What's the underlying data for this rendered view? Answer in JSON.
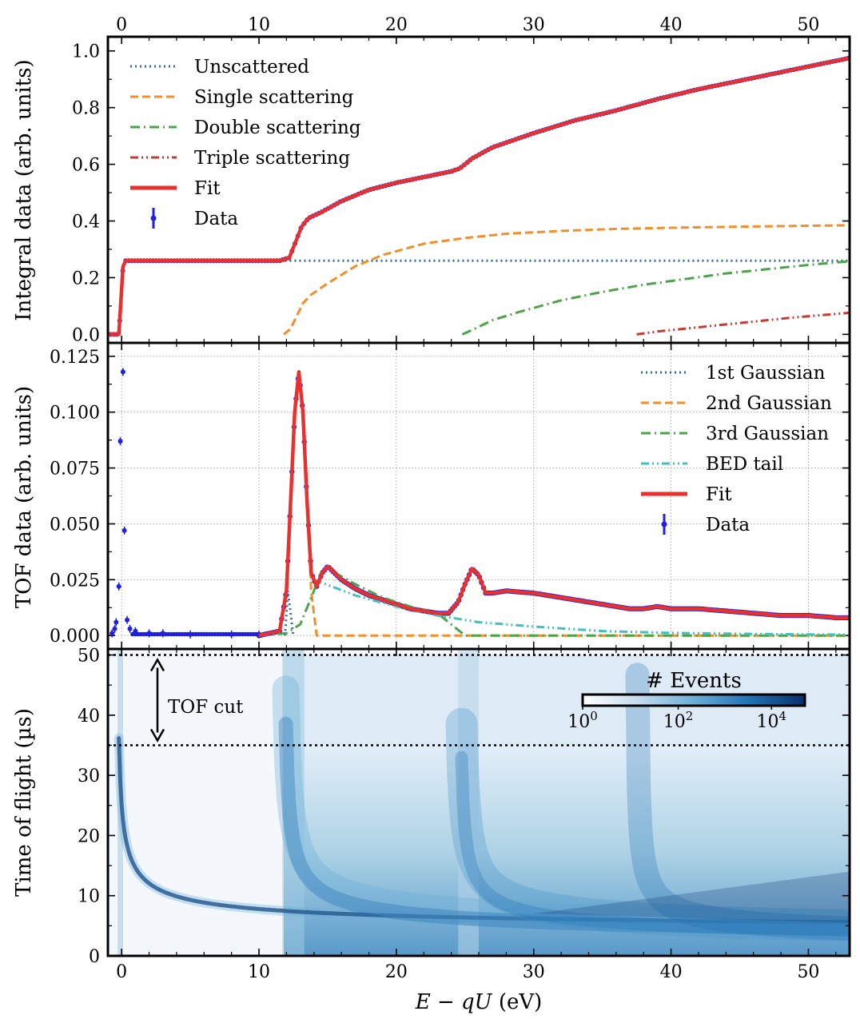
{
  "chart_data": [
    {
      "type": "line",
      "panel": "integral",
      "ylabel": "Integral data (arb. units)",
      "xlim": [
        -1,
        53
      ],
      "ylim": [
        -0.03,
        1.05
      ],
      "xticks": [
        "0",
        "10",
        "20",
        "30",
        "40",
        "50"
      ],
      "yticks": [
        "0.0",
        "0.2",
        "0.4",
        "0.6",
        "0.8",
        "1.0"
      ],
      "grid": false,
      "legend_position": "upper-left",
      "series": [
        {
          "name": "Unscattered",
          "style": "dotted",
          "color": "#2f6bab",
          "x": [
            -1,
            -0.2,
            0.1,
            0.3,
            53
          ],
          "y": [
            0,
            0,
            0.24,
            0.26,
            0.26
          ]
        },
        {
          "name": "Single scattering",
          "style": "dashed",
          "color": "#f28e2b",
          "x": [
            11.8,
            12.3,
            12.8,
            13.2,
            13.8,
            15,
            17,
            19,
            22,
            25,
            28,
            32,
            36,
            40,
            45,
            50,
            53
          ],
          "y": [
            0,
            0.02,
            0.07,
            0.11,
            0.14,
            0.18,
            0.24,
            0.28,
            0.32,
            0.34,
            0.355,
            0.365,
            0.372,
            0.376,
            0.38,
            0.383,
            0.385
          ]
        },
        {
          "name": "Double scattering",
          "style": "dashdot",
          "color": "#4ea24a",
          "x": [
            24.8,
            25.5,
            27,
            29,
            32,
            35,
            38,
            41,
            44,
            47,
            50,
            53
          ],
          "y": [
            0,
            0.015,
            0.05,
            0.08,
            0.12,
            0.15,
            0.175,
            0.195,
            0.215,
            0.23,
            0.245,
            0.258
          ]
        },
        {
          "name": "Triple scattering",
          "style": "dashdotdot",
          "color": "#c53a32",
          "x": [
            37.5,
            39,
            41,
            43,
            45,
            47,
            49,
            51,
            53
          ],
          "y": [
            0,
            0.01,
            0.02,
            0.03,
            0.04,
            0.05,
            0.06,
            0.068,
            0.076
          ]
        },
        {
          "name": "Fit",
          "style": "solid",
          "color": "#e8312f",
          "x": [
            -1,
            -0.2,
            0.1,
            0.3,
            11.5,
            12.2,
            12.7,
            13.1,
            13.6,
            14.5,
            16,
            18,
            20,
            22,
            24,
            24.6,
            25.5,
            27,
            30,
            33,
            36,
            39,
            42,
            45,
            48,
            51,
            53
          ],
          "y": [
            0,
            0,
            0.24,
            0.26,
            0.26,
            0.27,
            0.33,
            0.38,
            0.41,
            0.43,
            0.47,
            0.51,
            0.535,
            0.555,
            0.575,
            0.585,
            0.62,
            0.66,
            0.71,
            0.755,
            0.79,
            0.83,
            0.865,
            0.895,
            0.925,
            0.955,
            0.975
          ]
        },
        {
          "name": "Data",
          "style": "points",
          "color": "#1f1fe0"
        }
      ]
    },
    {
      "type": "line",
      "panel": "tof",
      "ylabel": "TOF data (arb. units)",
      "xlim": [
        -1,
        53
      ],
      "ylim": [
        -0.006,
        0.131
      ],
      "xticks": [
        "0",
        "10",
        "20",
        "30",
        "40",
        "50"
      ],
      "yticks": [
        "0.000",
        "0.025",
        "0.050",
        "0.075",
        "0.100",
        "0.125"
      ],
      "grid": true,
      "legend_position": "upper-right",
      "series": [
        {
          "name": "1st Gaussian",
          "style": "dotted",
          "color": "#2f6bab",
          "x": [
            11.9,
            12.1,
            12.3,
            12.5
          ],
          "y": [
            0,
            0.02,
            0.01,
            0
          ]
        },
        {
          "name": "2nd Gaussian",
          "style": "dashed",
          "color": "#f28e2b",
          "x": [
            10,
            11.5,
            12,
            12.3,
            12.6,
            12.9,
            13.2,
            13.5,
            13.8,
            14.2,
            53
          ],
          "y": [
            0,
            0.002,
            0.02,
            0.06,
            0.1,
            0.118,
            0.1,
            0.06,
            0.02,
            0,
            0
          ]
        },
        {
          "name": "3rd Gaussian",
          "style": "dashdot",
          "color": "#4ea24a",
          "x": [
            10,
            12,
            13,
            14,
            14.5,
            15,
            17,
            19,
            21,
            23,
            25,
            53
          ],
          "y": [
            0,
            0.001,
            0.005,
            0.02,
            0.028,
            0.03,
            0.023,
            0.017,
            0.013,
            0.01,
            0,
            0
          ]
        },
        {
          "name": "BED tail",
          "style": "dashdotdot",
          "color": "#40c0c0",
          "x": [
            14,
            17,
            20,
            23,
            26,
            30,
            35,
            40,
            45,
            50,
            53
          ],
          "y": [
            0.025,
            0.018,
            0.013,
            0.009,
            0.006,
            0.004,
            0.002,
            0.0012,
            0.0008,
            0.0005,
            0.0004
          ]
        },
        {
          "name": "Fit",
          "style": "solid",
          "color": "#e8312f",
          "x": [
            10,
            11.5,
            12,
            12.3,
            12.6,
            12.9,
            13.2,
            13.5,
            13.8,
            14.2,
            14.6,
            15,
            16,
            17,
            18,
            19,
            20,
            21,
            22,
            23,
            23.8,
            24.5,
            25,
            25.5,
            26,
            26.5,
            27,
            28,
            30,
            32,
            34,
            36,
            37,
            38,
            39,
            40,
            42,
            44,
            46,
            48,
            50,
            52,
            53
          ],
          "y": [
            0,
            0.002,
            0.02,
            0.06,
            0.1,
            0.118,
            0.1,
            0.06,
            0.028,
            0.022,
            0.028,
            0.031,
            0.025,
            0.021,
            0.018,
            0.016,
            0.014,
            0.012,
            0.011,
            0.01,
            0.01,
            0.015,
            0.023,
            0.03,
            0.027,
            0.019,
            0.019,
            0.02,
            0.019,
            0.017,
            0.015,
            0.013,
            0.012,
            0.012,
            0.013,
            0.012,
            0.012,
            0.011,
            0.01,
            0.009,
            0.009,
            0.008,
            0.008
          ]
        },
        {
          "name": "Data",
          "style": "points",
          "color": "#1f1fe0",
          "x": [
            -0.7,
            -0.5,
            -0.4,
            -0.2,
            -0.1,
            0.1,
            0.2,
            0.4,
            0.6,
            1,
            2,
            3,
            5,
            8,
            10
          ],
          "y": [
            0.001,
            0.003,
            0.006,
            0.022,
            0.087,
            0.118,
            0.047,
            0.007,
            0.003,
            0.002,
            0.001,
            0.001,
            0.0005,
            0.0005,
            0.0005
          ]
        }
      ]
    },
    {
      "type": "heatmap",
      "panel": "time-of-flight",
      "ylabel": "Time of flight (µs)",
      "xlabel_parts": {
        "italic": "E − qU",
        "unit": " (eV)"
      },
      "xlim": [
        -1,
        53
      ],
      "ylim": [
        0,
        51
      ],
      "xticks": [
        "0",
        "10",
        "20",
        "30",
        "40",
        "50"
      ],
      "yticks": [
        "0",
        "10",
        "20",
        "30",
        "40",
        "50"
      ],
      "colorbar": {
        "label": "# Events",
        "ticks": [
          {
            "base": "10",
            "exp": "0",
            "frac": 0
          },
          {
            "base": "10",
            "exp": "2",
            "frac": 0.43
          },
          {
            "base": "10",
            "exp": "4",
            "frac": 0.85
          }
        ],
        "colors": [
          "#ffffff",
          "#c6dbef",
          "#6baed6",
          "#2171b5",
          "#08306b"
        ]
      },
      "tof_cut": {
        "label": "TOF cut",
        "lines": [
          50,
          35
        ]
      }
    }
  ]
}
